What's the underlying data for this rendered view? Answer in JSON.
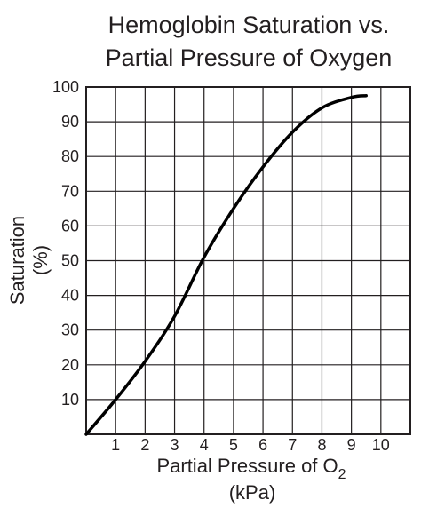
{
  "chart_data": {
    "type": "line",
    "title_line1": "Hemoglobin Saturation vs.",
    "title_line2": "Partial Pressure of Oxygen",
    "xlabel_main": "Partial Pressure of O",
    "xlabel_subscript": "2",
    "xlabel_unit": "(kPa)",
    "ylabel_main": "Saturation",
    "ylabel_unit": "(%)",
    "xlim": [
      0,
      11
    ],
    "ylim": [
      0,
      100
    ],
    "x_ticks": [
      "1",
      "2",
      "3",
      "4",
      "5",
      "6",
      "7",
      "8",
      "9",
      "10"
    ],
    "y_ticks": [
      "10",
      "20",
      "30",
      "40",
      "50",
      "60",
      "70",
      "80",
      "90",
      "100"
    ],
    "grid": true,
    "series": [
      {
        "color": "#000000",
        "x": [
          0,
          1,
          2,
          3,
          4,
          5,
          6,
          7,
          8,
          9,
          9.5
        ],
        "y": [
          0,
          10,
          21,
          34,
          51,
          65,
          77,
          87,
          94,
          97,
          97.5
        ]
      }
    ]
  }
}
